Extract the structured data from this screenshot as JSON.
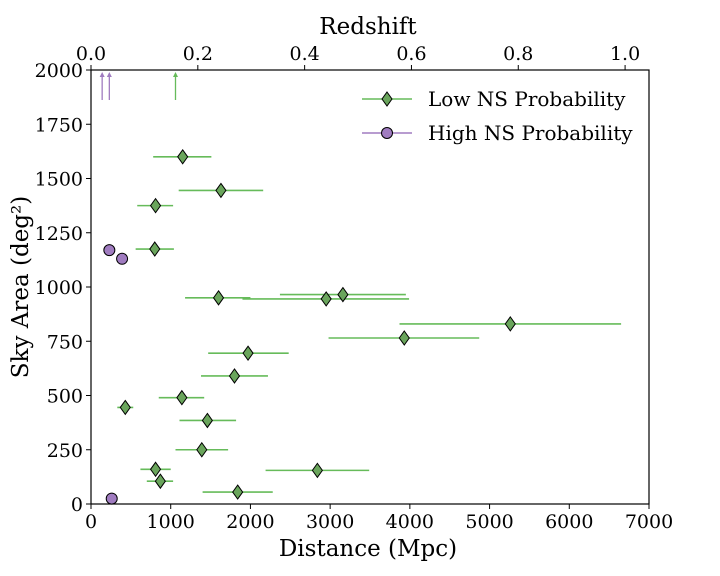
{
  "chart_data": {
    "type": "scatter",
    "xlabel": "Distance (Mpc)",
    "ylabel": "Sky Area (deg²)",
    "top_xlabel": "Redshift",
    "xlim": [
      0,
      7000
    ],
    "ylim": [
      0,
      2000
    ],
    "x_ticks": [
      "0",
      "1000",
      "2000",
      "3000",
      "4000",
      "5000",
      "6000",
      "7000"
    ],
    "y_ticks": [
      "0",
      "250",
      "500",
      "750",
      "1000",
      "1250",
      "1500",
      "1750",
      "2000"
    ],
    "top_ticks": [
      "0.0",
      "0.2",
      "0.4",
      "0.6",
      "0.8",
      "1.0"
    ],
    "legend_position": "top-right",
    "grid": false,
    "series": [
      {
        "name": "Low NS Probability",
        "color": "#66bb5a",
        "marker": "diamond",
        "points": [
          {
            "x": 1150,
            "y": 1600,
            "xmin": 780,
            "xmax": 1510
          },
          {
            "x": 1630,
            "y": 1445,
            "xmin": 1100,
            "xmax": 2160
          },
          {
            "x": 810,
            "y": 1375,
            "xmin": 580,
            "xmax": 1030
          },
          {
            "x": 800,
            "y": 1175,
            "xmin": 560,
            "xmax": 1040
          },
          {
            "x": 1600,
            "y": 950,
            "xmin": 1180,
            "xmax": 2000
          },
          {
            "x": 3160,
            "y": 965,
            "xmin": 2370,
            "xmax": 3950
          },
          {
            "x": 2950,
            "y": 945,
            "xmin": 1900,
            "xmax": 3990
          },
          {
            "x": 5260,
            "y": 830,
            "xmin": 3870,
            "xmax": 6650
          },
          {
            "x": 3930,
            "y": 765,
            "xmin": 2980,
            "xmax": 4870
          },
          {
            "x": 1970,
            "y": 695,
            "xmin": 1470,
            "xmax": 2480
          },
          {
            "x": 1800,
            "y": 590,
            "xmin": 1380,
            "xmax": 2220
          },
          {
            "x": 1140,
            "y": 490,
            "xmin": 850,
            "xmax": 1420
          },
          {
            "x": 430,
            "y": 445,
            "xmin": 330,
            "xmax": 530
          },
          {
            "x": 1460,
            "y": 385,
            "xmin": 1110,
            "xmax": 1820
          },
          {
            "x": 1390,
            "y": 250,
            "xmin": 1060,
            "xmax": 1720
          },
          {
            "x": 2840,
            "y": 155,
            "xmin": 2190,
            "xmax": 3490
          },
          {
            "x": 810,
            "y": 160,
            "xmin": 620,
            "xmax": 1000
          },
          {
            "x": 870,
            "y": 105,
            "xmin": 700,
            "xmax": 1030
          },
          {
            "x": 1840,
            "y": 55,
            "xmin": 1400,
            "xmax": 2280
          }
        ],
        "lower_limit_arrows": [
          {
            "x": 1060
          }
        ]
      },
      {
        "name": "High NS Probability",
        "color": "#a07cc0",
        "marker": "circle",
        "points": [
          {
            "x": 230,
            "y": 1170,
            "xmin": 190,
            "xmax": 270
          },
          {
            "x": 390,
            "y": 1130,
            "xmin": 320,
            "xmax": 460
          },
          {
            "x": 260,
            "y": 25,
            "xmin": 230,
            "xmax": 290
          }
        ],
        "lower_limit_arrows": [
          {
            "x": 140
          },
          {
            "x": 230
          }
        ]
      }
    ]
  }
}
